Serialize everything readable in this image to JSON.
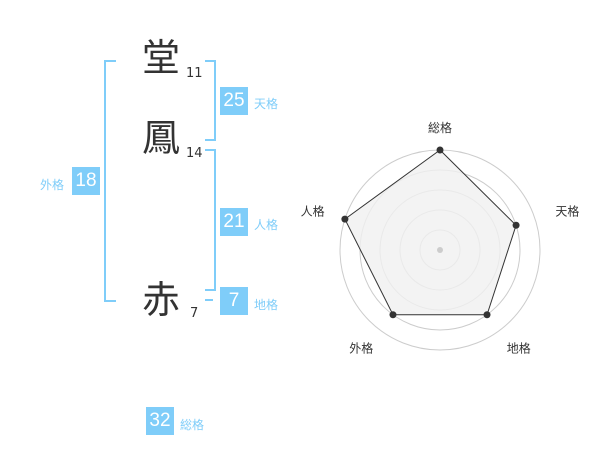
{
  "name": {
    "chars": [
      {
        "char": "堂",
        "strokes": "11"
      },
      {
        "char": "鳳",
        "strokes": "14"
      },
      {
        "char": "赤",
        "strokes": "7"
      }
    ]
  },
  "kaku": {
    "tenkaku": {
      "value": "25",
      "label": "天格"
    },
    "jinkaku": {
      "value": "21",
      "label": "人格"
    },
    "chikaku": {
      "value": "7",
      "label": "地格"
    },
    "gaikaku": {
      "value": "18",
      "label": "外格"
    },
    "soukaku": {
      "value": "32",
      "label": "総格"
    }
  },
  "colors": {
    "accent": "#7fcdf9",
    "polygon_fill": "#f0f0f0",
    "ring": "#cccccc",
    "point": "#333333"
  },
  "chart_data": {
    "type": "radar",
    "axes": [
      "総格",
      "天格",
      "地格",
      "外格",
      "人格"
    ],
    "values": [
      5,
      4,
      4,
      4,
      5
    ],
    "range": [
      0,
      5
    ]
  }
}
